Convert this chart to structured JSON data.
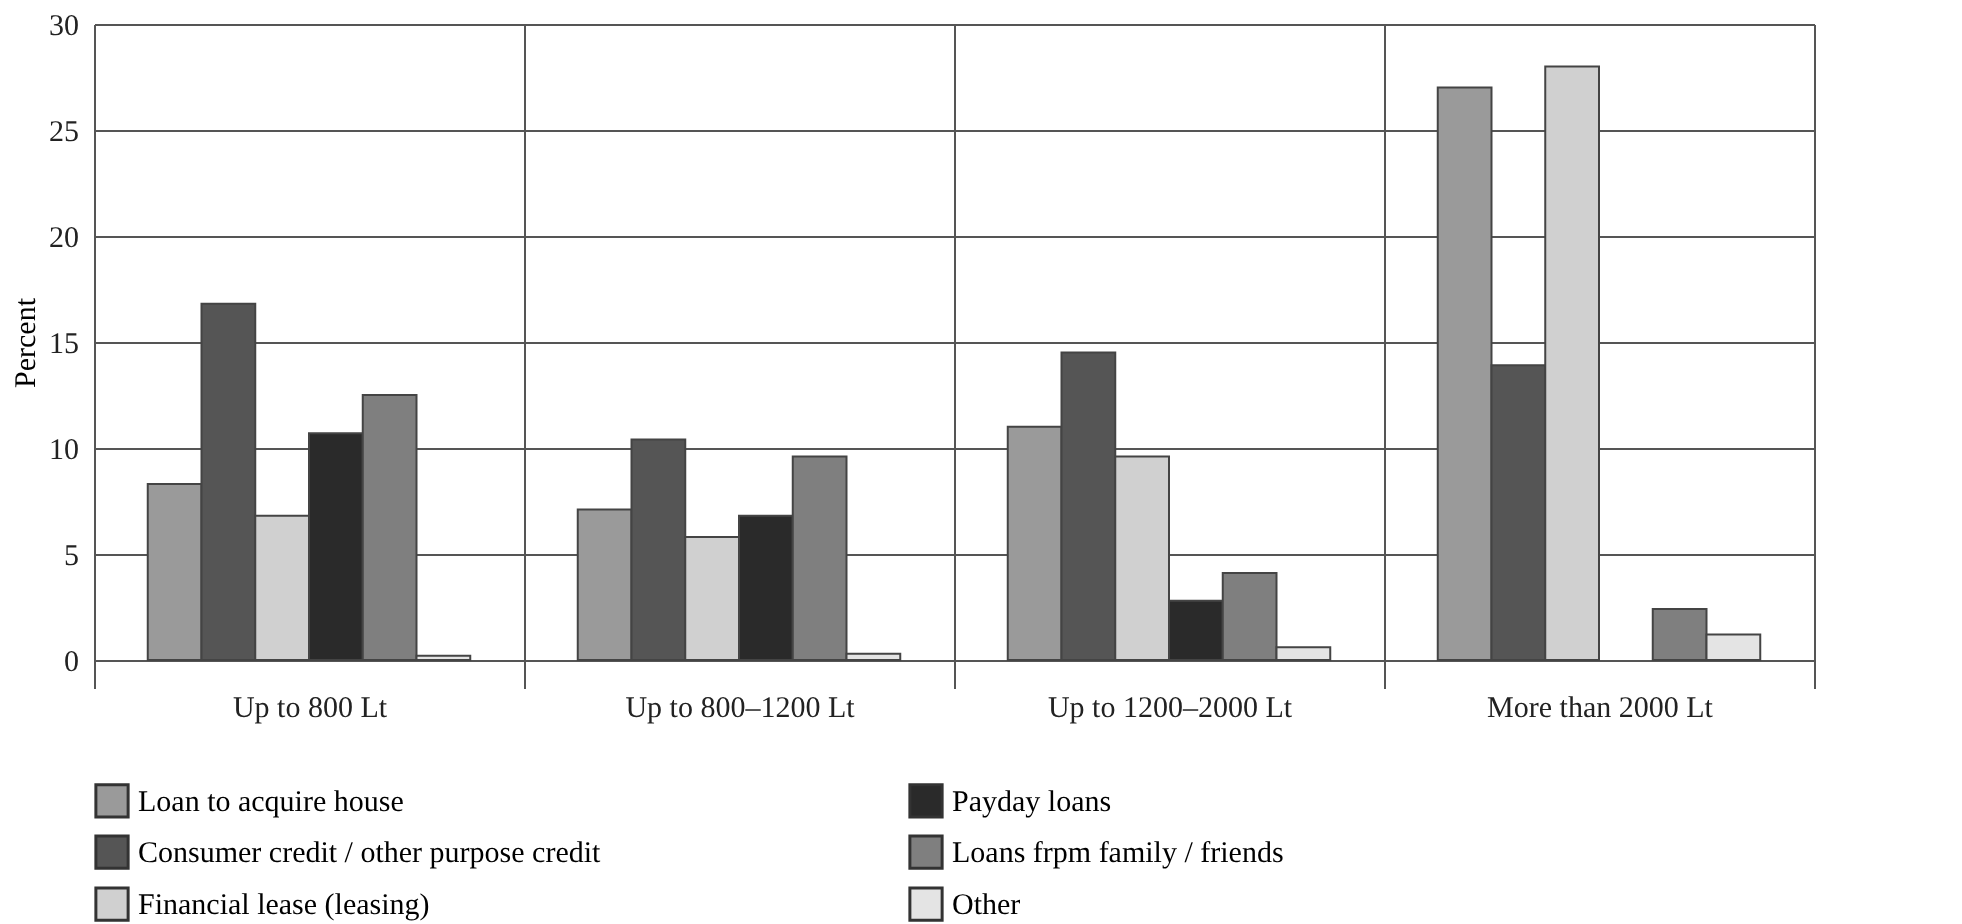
{
  "chart_data": {
    "type": "bar",
    "ylabel": "Percent",
    "categories": [
      "Up to 800 Lt",
      "Up to 800–1200 Lt",
      "Up to 1200–2000 Lt",
      "More than 2000 Lt"
    ],
    "series": [
      {
        "name": "Loan to acquire house",
        "color": "#9a9a9a",
        "values": [
          8.3,
          7.1,
          11.0,
          27.0
        ]
      },
      {
        "name": "Consumer credit / other purpose credit",
        "color": "#555555",
        "values": [
          16.8,
          10.4,
          14.5,
          13.9
        ]
      },
      {
        "name": "Financial lease (leasing)",
        "color": "#d0d0d0",
        "values": [
          6.8,
          5.8,
          9.6,
          28.0
        ]
      },
      {
        "name": "Payday loans",
        "color": "#2a2a2a",
        "values": [
          10.7,
          6.8,
          2.8,
          null
        ]
      },
      {
        "name": "Loans frpm family / friends",
        "color": "#7f7f7f",
        "values": [
          12.5,
          9.6,
          4.1,
          2.4
        ]
      },
      {
        "name": "Other",
        "color": "#e4e4e4",
        "values": [
          0.2,
          0.3,
          0.6,
          1.2
        ]
      }
    ],
    "ylim": [
      0,
      30
    ],
    "yticks": [
      0,
      5,
      10,
      15,
      20,
      25,
      30
    ],
    "grid": true,
    "legend": "bottom"
  }
}
